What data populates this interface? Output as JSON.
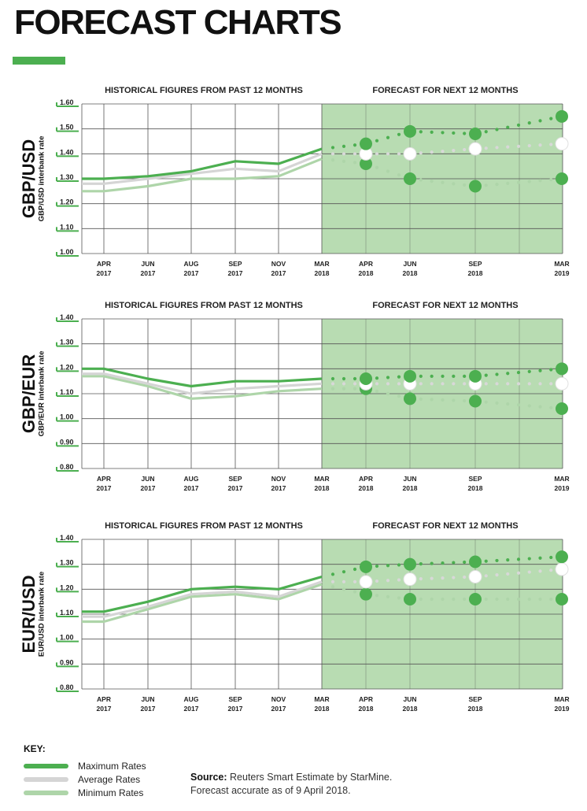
{
  "page_title": "FORECAST CHARTS",
  "colors": {
    "max": "#4caf50",
    "avg": "#d5d5d5",
    "min": "#aed5a9",
    "forecast_bg": "#b8dcb2",
    "grid": "#555555",
    "tick_mark": "#4caf50"
  },
  "section_labels": {
    "historical": "HISTORICAL FIGURES FROM PAST 12 MONTHS",
    "forecast": "FORECAST FOR NEXT 12 MONTHS"
  },
  "x_labels": [
    {
      "m": "APR",
      "y": "2017"
    },
    {
      "m": "JUN",
      "y": "2017"
    },
    {
      "m": "AUG",
      "y": "2017"
    },
    {
      "m": "SEP",
      "y": "2017"
    },
    {
      "m": "NOV",
      "y": "2017"
    },
    {
      "m": "MAR",
      "y": "2018"
    },
    {
      "m": "APR",
      "y": "2018"
    },
    {
      "m": "JUN",
      "y": "2018"
    },
    {
      "m": "SEP",
      "y": "2018"
    },
    {
      "m": "MAR",
      "y": "2019"
    }
  ],
  "chart_data": [
    {
      "type": "line",
      "pair": "GBP/USD",
      "ylabel": "GBP/USD interbank rate",
      "ylim": [
        1.0,
        1.6
      ],
      "yticks": [
        "1.60",
        "1.50",
        "1.40",
        "1.30",
        "1.20",
        "1.10",
        "1.00"
      ],
      "series": [
        {
          "name": "Maximum Rates",
          "historical": [
            1.3,
            1.3,
            1.31,
            1.33,
            1.37,
            1.36,
            1.42
          ],
          "forecast": [
            1.42,
            1.44,
            1.49,
            1.48,
            1.55
          ]
        },
        {
          "name": "Average Rates",
          "historical": [
            1.28,
            1.28,
            1.3,
            1.32,
            1.34,
            1.33,
            1.4
          ],
          "forecast": [
            1.4,
            1.4,
            1.4,
            1.42,
            1.44
          ]
        },
        {
          "name": "Minimum Rates",
          "historical": [
            1.25,
            1.25,
            1.27,
            1.3,
            1.3,
            1.31,
            1.38
          ],
          "forecast": [
            1.38,
            1.36,
            1.3,
            1.27,
            1.3
          ]
        }
      ]
    },
    {
      "type": "line",
      "pair": "GBP/EUR",
      "ylabel": "GBP/EUR interbank rate",
      "ylim": [
        0.8,
        1.4
      ],
      "yticks": [
        "1.40",
        "1.30",
        "1.20",
        "1.10",
        "1.00",
        "0.90",
        "0.80"
      ],
      "series": [
        {
          "name": "Maximum Rates",
          "historical": [
            1.2,
            1.2,
            1.16,
            1.13,
            1.15,
            1.15,
            1.16
          ],
          "forecast": [
            1.16,
            1.16,
            1.17,
            1.17,
            1.2
          ]
        },
        {
          "name": "Average Rates",
          "historical": [
            1.18,
            1.18,
            1.14,
            1.1,
            1.12,
            1.13,
            1.14
          ],
          "forecast": [
            1.14,
            1.14,
            1.14,
            1.14,
            1.14
          ]
        },
        {
          "name": "Minimum Rates",
          "historical": [
            1.17,
            1.17,
            1.13,
            1.08,
            1.09,
            1.11,
            1.12
          ],
          "forecast": [
            1.12,
            1.12,
            1.08,
            1.07,
            1.04
          ]
        }
      ]
    },
    {
      "type": "line",
      "pair": "EUR/USD",
      "ylabel": "EUR/USD interbank rate",
      "ylim": [
        0.8,
        1.4
      ],
      "yticks": [
        "1.40",
        "1.30",
        "1.20",
        "1.10",
        "1.00",
        "0.90",
        "0.80"
      ],
      "series": [
        {
          "name": "Maximum Rates",
          "historical": [
            1.11,
            1.11,
            1.15,
            1.2,
            1.21,
            1.2,
            1.25
          ],
          "forecast": [
            1.25,
            1.29,
            1.3,
            1.31,
            1.33
          ]
        },
        {
          "name": "Average Rates",
          "historical": [
            1.09,
            1.09,
            1.13,
            1.18,
            1.19,
            1.17,
            1.23
          ],
          "forecast": [
            1.23,
            1.23,
            1.24,
            1.25,
            1.28
          ]
        },
        {
          "name": "Minimum Rates",
          "historical": [
            1.07,
            1.07,
            1.12,
            1.17,
            1.18,
            1.16,
            1.22
          ],
          "forecast": [
            1.22,
            1.18,
            1.16,
            1.16,
            1.16
          ]
        }
      ]
    }
  ],
  "key": {
    "title": "KEY:",
    "items": [
      {
        "label": "Maximum Rates",
        "color": "#4caf50"
      },
      {
        "label": "Average Rates",
        "color": "#d5d5d5"
      },
      {
        "label": "Minimum Rates",
        "color": "#aed5a9"
      }
    ]
  },
  "source": {
    "label": "Source:",
    "text": " Reuters Smart Estimate by StarMine.",
    "note": "Forecast accurate as of 9 April 2018."
  }
}
